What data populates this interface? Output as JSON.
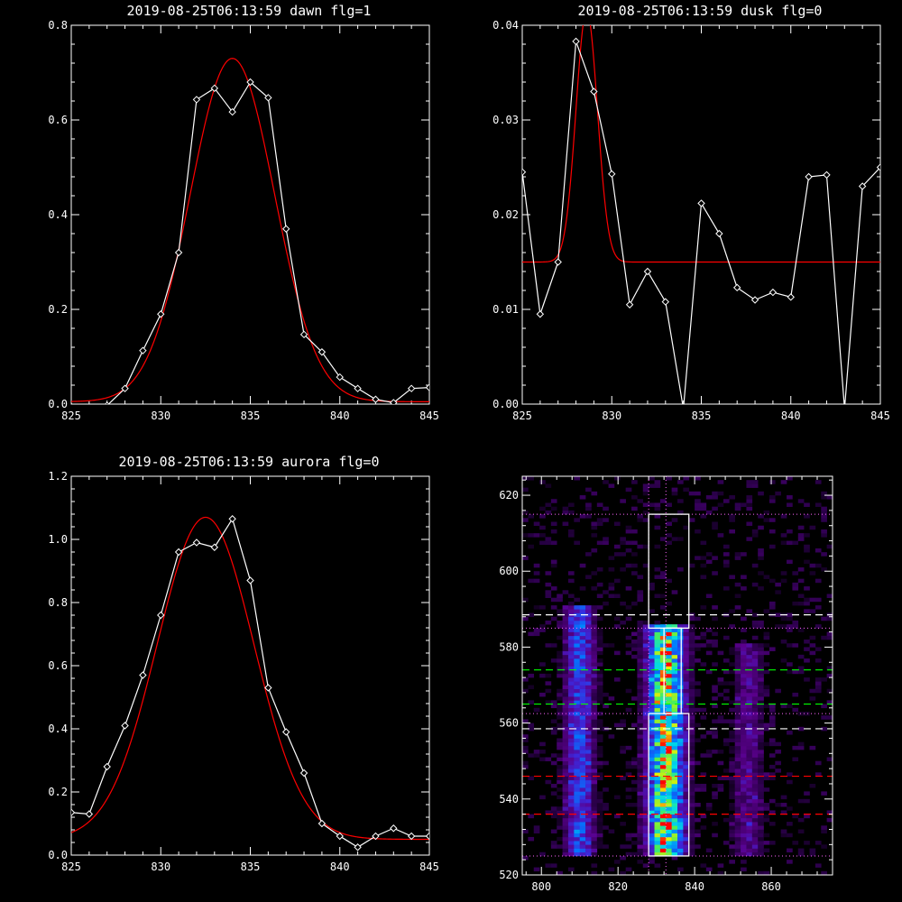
{
  "colors": {
    "background": "#000000",
    "axes": "#ffffff",
    "data_line": "#ffffff",
    "fit_line": "#ff0000",
    "band_sample": "#ffffff",
    "band_aurora": "#ffffff",
    "band_dusk": "#00ff00",
    "band_dawn": "#ff0000",
    "grid_dotted": "#ff66ff"
  },
  "chart_data": [
    {
      "id": "dawn",
      "type": "line",
      "title": "2019-08-25T06:13:59 dawn flg=1",
      "xlabel": "",
      "ylabel": "",
      "xlim": [
        825,
        845
      ],
      "ylim": [
        0,
        0.8
      ],
      "xticks": [
        "825",
        "830",
        "835",
        "840",
        "845"
      ],
      "yticks": [
        "0.0",
        "0.2",
        "0.4",
        "0.6",
        "0.8"
      ],
      "xtick_values": [
        825,
        830,
        835,
        840,
        845
      ],
      "ytick_values": [
        0,
        0.2,
        0.4,
        0.6,
        0.8
      ],
      "series": [
        {
          "role": "data",
          "marker": "diamond",
          "x": [
            825,
            826,
            827,
            828,
            829,
            830,
            831,
            832,
            833,
            834,
            835,
            836,
            837,
            838,
            839,
            840,
            841,
            842,
            843,
            844,
            845
          ],
          "y": [
            -0.005,
            -0.01,
            -0.003,
            0.033,
            0.113,
            0.19,
            0.32,
            0.643,
            0.667,
            0.617,
            0.68,
            0.647,
            0.37,
            0.147,
            0.11,
            0.057,
            0.033,
            0.01,
            0.003,
            0.033,
            0.035
          ]
        },
        {
          "role": "fit",
          "model": "gaussian",
          "amplitude": 0.725,
          "center": 834.0,
          "sigma": 2.35,
          "baseline": 0.005
        }
      ]
    },
    {
      "id": "dusk",
      "type": "line",
      "title": "2019-08-25T06:13:59 dusk flg=0",
      "xlabel": "",
      "ylabel": "",
      "xlim": [
        825,
        845
      ],
      "ylim": [
        0,
        0.04
      ],
      "xticks": [
        "825",
        "830",
        "835",
        "840",
        "845"
      ],
      "yticks": [
        "0.00",
        "0.01",
        "0.02",
        "0.03",
        "0.04"
      ],
      "xtick_values": [
        825,
        830,
        835,
        840,
        845
      ],
      "ytick_values": [
        0,
        0.01,
        0.02,
        0.03,
        0.04
      ],
      "series": [
        {
          "role": "data",
          "marker": "diamond",
          "x": [
            825,
            826,
            827,
            828,
            829,
            830,
            831,
            832,
            833,
            834,
            835,
            836,
            837,
            838,
            839,
            840,
            841,
            842,
            843,
            844,
            845
          ],
          "y": [
            0.0245,
            0.0095,
            0.015,
            0.0383,
            0.033,
            0.0243,
            0.0105,
            0.014,
            0.0108,
            -0.0005,
            0.0212,
            0.018,
            0.0123,
            0.011,
            0.0118,
            0.0113,
            0.024,
            0.0242,
            -0.0005,
            0.023,
            0.025
          ]
        },
        {
          "role": "fit",
          "model": "gaussian",
          "amplitude": 0.0265,
          "center": 828.6,
          "sigma": 0.6,
          "baseline": 0.015
        }
      ]
    },
    {
      "id": "aurora",
      "type": "line",
      "title": "2019-08-25T06:13:59 aurora flg=0",
      "xlabel": "",
      "ylabel": "",
      "xlim": [
        825,
        845
      ],
      "ylim": [
        0,
        1.2
      ],
      "xticks": [
        "825",
        "830",
        "835",
        "840",
        "845"
      ],
      "yticks": [
        "0.0",
        "0.2",
        "0.4",
        "0.6",
        "0.8",
        "1.0",
        "1.2"
      ],
      "xtick_values": [
        825,
        830,
        835,
        840,
        845
      ],
      "ytick_values": [
        0,
        0.2,
        0.4,
        0.6,
        0.8,
        1.0,
        1.2
      ],
      "series": [
        {
          "role": "data",
          "marker": "diamond",
          "x": [
            825,
            826,
            827,
            828,
            829,
            830,
            831,
            832,
            833,
            834,
            835,
            836,
            837,
            838,
            839,
            840,
            841,
            842,
            843,
            844,
            845
          ],
          "y": [
            0.135,
            0.13,
            0.28,
            0.41,
            0.57,
            0.76,
            0.96,
            0.99,
            0.975,
            1.065,
            0.87,
            0.53,
            0.39,
            0.26,
            0.1,
            0.06,
            0.025,
            0.06,
            0.085,
            0.06,
            0.06
          ]
        },
        {
          "role": "fit",
          "model": "gaussian",
          "amplitude": 1.02,
          "center": 832.5,
          "sigma": 2.7,
          "baseline": 0.05
        }
      ]
    },
    {
      "id": "image",
      "type": "heatmap",
      "title": "",
      "xlabel": "",
      "ylabel": "",
      "xlim": [
        795,
        876
      ],
      "ylim": [
        520,
        625
      ],
      "xticks": [
        "800",
        "820",
        "840",
        "860"
      ],
      "yticks": [
        "520",
        "540",
        "560",
        "580",
        "600",
        "620"
      ],
      "xtick_values": [
        800,
        820,
        840,
        860
      ],
      "ytick_values": [
        520,
        540,
        560,
        580,
        600,
        620
      ],
      "emission_lines": [
        {
          "center": 810,
          "width": 2.5,
          "ymin": 525,
          "ymax": 590,
          "intensity": 0.45
        },
        {
          "center": 832.5,
          "width": 3.2,
          "ymin": 525,
          "ymax": 585,
          "intensity": 0.95
        },
        {
          "center": 854,
          "width": 2.5,
          "ymin": 525,
          "ymax": 580,
          "intensity": 0.22
        }
      ],
      "boxes": [
        {
          "name": "sample-box-top",
          "x": [
            828,
            838.5
          ],
          "y": [
            585,
            615
          ]
        },
        {
          "name": "sample-box-middle",
          "x": [
            832,
            836.5
          ],
          "y": [
            562.5,
            585
          ]
        },
        {
          "name": "sample-box-bottom",
          "x": [
            828,
            838.5
          ],
          "y": [
            525,
            562.5
          ]
        }
      ],
      "vertical_dotted_lines": [
        828,
        832.5
      ],
      "horizontal_dotted_lines": [
        525,
        562.5,
        585,
        615
      ],
      "dashed_lines": [
        {
          "name": "white-dashed-upper",
          "y": 588.5,
          "color": "#ffffff"
        },
        {
          "name": "white-dashed-lower",
          "y": 558.5,
          "color": "#ffffff"
        },
        {
          "name": "green-dashed-upper",
          "y": 574,
          "color": "#00ff00"
        },
        {
          "name": "green-dashed-lower",
          "y": 565,
          "color": "#00ff00"
        },
        {
          "name": "red-dashed-upper",
          "y": 546,
          "color": "#ff0000"
        },
        {
          "name": "red-dashed-lower",
          "y": 536,
          "color": "#ff0000"
        }
      ]
    }
  ]
}
